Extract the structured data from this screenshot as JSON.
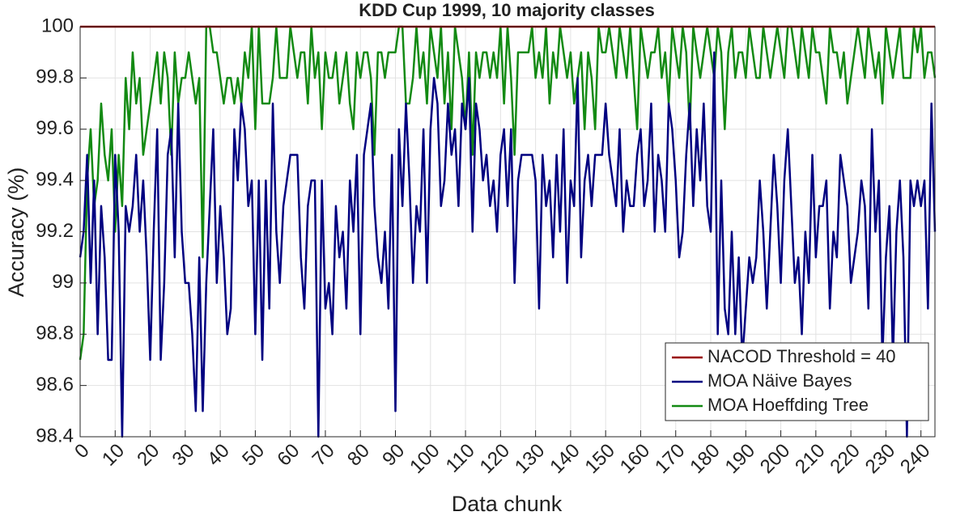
{
  "chart_data": {
    "type": "line",
    "title": "KDD Cup 1999, 10 majority classes",
    "xlabel": "Data chunk",
    "ylabel": "Accuracy (%)",
    "x": [
      0,
      1,
      2,
      3,
      4,
      5,
      6,
      7,
      8,
      9,
      10,
      11,
      12,
      13,
      14,
      15,
      16,
      17,
      18,
      19,
      20,
      21,
      22,
      23,
      24,
      25,
      26,
      27,
      28,
      29,
      30,
      31,
      32,
      33,
      34,
      35,
      36,
      37,
      38,
      39,
      40,
      41,
      42,
      43,
      44,
      45,
      46,
      47,
      48,
      49,
      50,
      51,
      52,
      53,
      54,
      55,
      56,
      57,
      58,
      59,
      60,
      61,
      62,
      63,
      64,
      65,
      66,
      67,
      68,
      69,
      70,
      71,
      72,
      73,
      74,
      75,
      76,
      77,
      78,
      79,
      80,
      81,
      82,
      83,
      84,
      85,
      86,
      87,
      88,
      89,
      90,
      91,
      92,
      93,
      94,
      95,
      96,
      97,
      98,
      99,
      100,
      101,
      102,
      103,
      104,
      105,
      106,
      107,
      108,
      109,
      110,
      111,
      112,
      113,
      114,
      115,
      116,
      117,
      118,
      119,
      120,
      121,
      122,
      123,
      124,
      125,
      126,
      127,
      128,
      129,
      130,
      131,
      132,
      133,
      134,
      135,
      136,
      137,
      138,
      139,
      140,
      141,
      142,
      143,
      144,
      145,
      146,
      147,
      148,
      149,
      150,
      151,
      152,
      153,
      154,
      155,
      156,
      157,
      158,
      159,
      160,
      161,
      162,
      163,
      164,
      165,
      166,
      167,
      168,
      169,
      170,
      171,
      172,
      173,
      174,
      175,
      176,
      177,
      178,
      179,
      180,
      181,
      182,
      183,
      184,
      185,
      186,
      187,
      188,
      189,
      190,
      191,
      192,
      193,
      194,
      195,
      196,
      197,
      198,
      199,
      200,
      201,
      202,
      203,
      204,
      205,
      206,
      207,
      208,
      209,
      210,
      211,
      212,
      213,
      214,
      215,
      216,
      217,
      218,
      219,
      220,
      221,
      222,
      223,
      224,
      225,
      226,
      227,
      228,
      229,
      230,
      231,
      232,
      233,
      234,
      235,
      236,
      237,
      238,
      239,
      240,
      241,
      242,
      243,
      244
    ],
    "series": [
      {
        "name": "NACOD Threshold = 40",
        "color": "#990000",
        "values": [
          100,
          100,
          100,
          100,
          100,
          100,
          100,
          100,
          100,
          100,
          100,
          100,
          100,
          100,
          100,
          100,
          100,
          100,
          100,
          100,
          100,
          100,
          100,
          100,
          100,
          100,
          100,
          100,
          100,
          100,
          100,
          100,
          100,
          100,
          100,
          100,
          100,
          100,
          100,
          100,
          100,
          100,
          100,
          100,
          100,
          100,
          100,
          100,
          100,
          100,
          100,
          100,
          100,
          100,
          100,
          100,
          100,
          100,
          100,
          100,
          100,
          100,
          100,
          100,
          100,
          100,
          100,
          100,
          100,
          100,
          100,
          100,
          100,
          100,
          100,
          100,
          100,
          100,
          100,
          100,
          100,
          100,
          100,
          100,
          100,
          100,
          100,
          100,
          100,
          100,
          100,
          100,
          100,
          100,
          100,
          100,
          100,
          100,
          100,
          100,
          100,
          100,
          100,
          100,
          100,
          100,
          100,
          100,
          100,
          100,
          100,
          100,
          100,
          100,
          100,
          100,
          100,
          100,
          100,
          100,
          100,
          100,
          100,
          100,
          100,
          100,
          100,
          100,
          100,
          100,
          100,
          100,
          100,
          100,
          100,
          100,
          100,
          100,
          100,
          100,
          100,
          100,
          100,
          100,
          100,
          100,
          100,
          100,
          100,
          100,
          100,
          100,
          100,
          100,
          100,
          100,
          100,
          100,
          100,
          100,
          100,
          100,
          100,
          100,
          100,
          100,
          100,
          100,
          100,
          100,
          100,
          100,
          100,
          100,
          100,
          100,
          100,
          100,
          100,
          100,
          100,
          100,
          100,
          100,
          100,
          100,
          100,
          100,
          100,
          100,
          100,
          100,
          100,
          100,
          100,
          100,
          100,
          100,
          100,
          100,
          100,
          100,
          100,
          100,
          100,
          100,
          100,
          100,
          100,
          100,
          100,
          100,
          100,
          100,
          100,
          100,
          100,
          100,
          100,
          100,
          100,
          100,
          100,
          100,
          100,
          100,
          100,
          100,
          100,
          100,
          100,
          100,
          100,
          100,
          100,
          100,
          100,
          100,
          100,
          100,
          100,
          100,
          100,
          100,
          100
        ]
      },
      {
        "name": "MOA Näive Bayes",
        "color": "#000080",
        "values": [
          99.1,
          99.2,
          99.5,
          99.0,
          99.4,
          98.8,
          99.3,
          99.1,
          98.7,
          98.7,
          99.5,
          99.2,
          98.4,
          99.3,
          99.2,
          99.3,
          99.5,
          99.2,
          99.4,
          99.1,
          98.7,
          99.2,
          99.6,
          98.7,
          99.0,
          99.5,
          99.6,
          99.1,
          99.7,
          99.2,
          99.0,
          99.0,
          98.8,
          98.5,
          99.1,
          98.5,
          99.0,
          99.3,
          99.6,
          99.0,
          99.3,
          99.1,
          98.8,
          98.9,
          99.6,
          99.4,
          99.7,
          99.6,
          99.3,
          99.4,
          98.8,
          99.4,
          98.7,
          99.4,
          98.9,
          99.7,
          99.2,
          99.0,
          99.3,
          99.4,
          99.5,
          99.5,
          99.5,
          99.1,
          98.9,
          99.3,
          99.4,
          99.4,
          98.4,
          99.4,
          98.9,
          99.0,
          98.8,
          99.3,
          99.1,
          99.2,
          98.9,
          99.4,
          99.2,
          99.5,
          98.8,
          99.5,
          99.6,
          99.7,
          99.3,
          99.1,
          99.0,
          99.2,
          98.9,
          99.5,
          98.5,
          99.6,
          99.3,
          99.7,
          99.4,
          99.0,
          99.3,
          99.2,
          99.6,
          99.0,
          99.6,
          99.8,
          99.7,
          99.3,
          99.4,
          99.7,
          99.5,
          99.6,
          99.3,
          99.7,
          99.6,
          99.8,
          99.2,
          99.7,
          99.6,
          99.4,
          99.5,
          99.3,
          99.4,
          99.2,
          99.5,
          99.6,
          99.3,
          99.6,
          99.0,
          99.4,
          99.5,
          99.5,
          99.5,
          99.5,
          99.4,
          98.9,
          99.5,
          99.3,
          99.4,
          99.1,
          99.5,
          99.2,
          99.6,
          99.0,
          99.4,
          99.3,
          99.8,
          99.1,
          99.4,
          99.5,
          99.3,
          99.5,
          99.5,
          99.5,
          99.7,
          99.5,
          99.4,
          99.3,
          99.6,
          99.2,
          99.4,
          99.3,
          99.3,
          99.5,
          99.6,
          99.3,
          99.4,
          99.7,
          99.2,
          99.5,
          99.4,
          99.2,
          99.7,
          99.6,
          99.4,
          99.1,
          99.2,
          99.5,
          99.7,
          99.3,
          99.6,
          99.4,
          99.7,
          99.3,
          99.2,
          99.9,
          98.8,
          99.4,
          98.9,
          98.8,
          99.2,
          98.8,
          99.1,
          98.7,
          98.9,
          99.1,
          99.0,
          99.1,
          99.4,
          99.2,
          98.9,
          99.2,
          99.5,
          99.3,
          99.0,
          99.4,
          99.6,
          99.3,
          99.0,
          99.1,
          98.8,
          99.2,
          99.0,
          99.5,
          99.1,
          99.3,
          99.3,
          99.4,
          98.9,
          99.2,
          99.1,
          99.5,
          99.4,
          99.3,
          99.0,
          99.1,
          99.2,
          99.4,
          99.3,
          98.9,
          99.6,
          99.2,
          99.4,
          98.7,
          99.1,
          99.3,
          98.7,
          99.2,
          99.4,
          99.1,
          98.4,
          99.4,
          99.3,
          99.4,
          99.3,
          99.4,
          98.9,
          99.7,
          99.2
        ]
      },
      {
        "name": "MOA Hoeffding Tree",
        "color": "#138a13",
        "values": [
          98.7,
          98.8,
          99.4,
          99.6,
          99.3,
          99.4,
          99.7,
          99.5,
          99.4,
          99.6,
          99.2,
          99.5,
          99.3,
          99.8,
          99.6,
          99.9,
          99.7,
          99.8,
          99.5,
          99.6,
          99.7,
          99.8,
          99.9,
          99.7,
          99.9,
          99.8,
          99.5,
          99.9,
          99.7,
          99.8,
          99.8,
          99.9,
          99.8,
          99.7,
          99.8,
          99.1,
          100,
          100,
          99.9,
          99.9,
          99.8,
          99.7,
          99.8,
          99.8,
          99.7,
          99.8,
          99.7,
          99.9,
          99.8,
          100,
          99.6,
          100,
          99.7,
          99.7,
          99.7,
          99.8,
          100,
          99.8,
          99.8,
          99.8,
          100,
          99.9,
          99.8,
          99.9,
          99.9,
          99.7,
          100,
          99.8,
          99.9,
          99.6,
          99.9,
          99.8,
          99.8,
          99.9,
          99.7,
          99.8,
          99.9,
          99.7,
          99.6,
          99.9,
          99.8,
          99.9,
          99.9,
          99.8,
          99.5,
          99.9,
          99.9,
          99.8,
          99.9,
          99.9,
          99.9,
          100,
          100,
          99.7,
          99.7,
          99.8,
          100,
          99.8,
          99.9,
          99.7,
          100,
          99.9,
          99.8,
          100,
          99.7,
          99.9,
          99.6,
          100,
          99.9,
          99.8,
          99.6,
          99.9,
          99.5,
          99.9,
          99.8,
          99.9,
          99.9,
          99.8,
          99.9,
          99.8,
          100,
          99.7,
          100,
          99.8,
          99.5,
          99.9,
          99.9,
          99.9,
          99.9,
          100,
          99.8,
          99.9,
          99.8,
          100,
          99.7,
          99.9,
          99.8,
          100,
          99.9,
          99.8,
          99.9,
          99.7,
          99.8,
          99.9,
          99.6,
          99.9,
          99.8,
          99.6,
          100,
          99.9,
          99.9,
          100,
          99.9,
          99.8,
          100,
          99.9,
          99.8,
          100,
          99.8,
          99.6,
          100,
          99.9,
          99.8,
          99.9,
          99.9,
          100,
          99.8,
          99.9,
          99.7,
          100,
          99.9,
          99.8,
          100,
          99.9,
          99.6,
          100,
          99.9,
          99.8,
          99.9,
          100,
          99.9,
          99.8,
          100,
          99.9,
          99.6,
          99.9,
          100,
          99.8,
          99.9,
          99.9,
          99.8,
          100,
          99.9,
          99.8,
          99.8,
          100,
          99.9,
          99.8,
          99.9,
          100,
          99.9,
          99.8,
          100,
          100,
          99.9,
          99.8,
          100,
          99.9,
          99.8,
          100,
          99.9,
          99.9,
          99.8,
          99.7,
          100,
          99.9,
          99.9,
          99.8,
          99.9,
          99.7,
          99.8,
          99.9,
          100,
          99.9,
          99.8,
          100,
          99.9,
          99.8,
          99.9,
          99.7,
          100,
          99.9,
          99.8,
          99.9,
          100,
          99.8,
          99.8,
          99.8,
          100,
          99.9,
          100,
          99.8,
          99.9,
          99.9,
          99.8
        ]
      }
    ],
    "xlim": [
      0,
      244
    ],
    "xticks": [
      0,
      10,
      20,
      30,
      40,
      50,
      60,
      70,
      80,
      90,
      100,
      110,
      120,
      130,
      140,
      150,
      160,
      170,
      180,
      190,
      200,
      210,
      220,
      230,
      240
    ],
    "ylim": [
      98.4,
      100
    ],
    "yticks": [
      98.4,
      98.6,
      98.8,
      99,
      99.2,
      99.4,
      99.6,
      99.8,
      100
    ],
    "grid": true,
    "legend": "lower right"
  }
}
